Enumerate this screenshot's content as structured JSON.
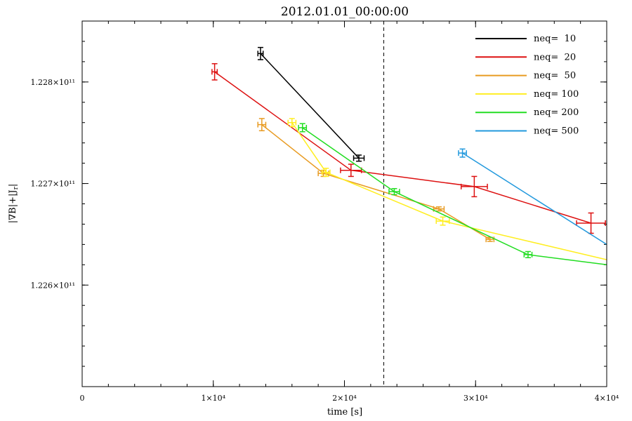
{
  "chart_data": {
    "type": "line",
    "title": "2012.01.01_00:00:00",
    "xlabel": "time [s]",
    "ylabel": "|∇B|+|J",
    "ylabel_sub": "r",
    "ylabel_suffix": "|",
    "xlim": [
      0,
      40000
    ],
    "ylim": [
      122500000000.0,
      122860000000.0
    ],
    "x_ticks": [
      {
        "value": 0,
        "label": "0"
      },
      {
        "value": 10000,
        "label": "1×10⁴"
      },
      {
        "value": 20000,
        "label": "2×10⁴"
      },
      {
        "value": 30000,
        "label": "3×10⁴"
      },
      {
        "value": 40000,
        "label": "4×10⁴"
      }
    ],
    "y_ticks": [
      {
        "value": 122600000000.0,
        "label": "1.226×10¹¹"
      },
      {
        "value": 122700000000.0,
        "label": "1.227×10¹¹"
      },
      {
        "value": 122800000000.0,
        "label": "1.228×10¹¹"
      }
    ],
    "vline": 23000,
    "legend_position": "top-right",
    "series": [
      {
        "name": "neq=  10",
        "color": "#000000",
        "points": [
          {
            "x": 13600,
            "y": 122828000000.0,
            "xerr": 200,
            "yerr": 6000000.0
          },
          {
            "x": 21100,
            "y": 122725000000.0,
            "xerr": 400,
            "yerr": 3000000.0
          }
        ]
      },
      {
        "name": "neq=  20",
        "color": "#dd1111",
        "points": [
          {
            "x": 10100,
            "y": 122810000000.0,
            "xerr": 200,
            "yerr": 8000000.0
          },
          {
            "x": 20500,
            "y": 122713000000.0,
            "xerr": 800,
            "yerr": 6000000.0
          },
          {
            "x": 29900,
            "y": 122697000000.0,
            "xerr": 1000,
            "yerr": 10000000.0
          },
          {
            "x": 38800,
            "y": 122661000000.0,
            "xerr": 1100,
            "yerr": 10000000.0
          }
        ]
      },
      {
        "name": "neq=  50",
        "color": "#e89b22",
        "points": [
          {
            "x": 13700,
            "y": 122758000000.0,
            "xerr": 300,
            "yerr": 6000000.0
          },
          {
            "x": 18400,
            "y": 122710000000.0,
            "xerr": 400,
            "yerr": 3000000.0
          },
          {
            "x": 27200,
            "y": 122675000000.0,
            "xerr": 400,
            "yerr": 2000000.0
          },
          {
            "x": 31100,
            "y": 122645000000.0,
            "xerr": 300,
            "yerr": 2000000.0
          }
        ]
      },
      {
        "name": "neq= 100",
        "color": "#ffee22",
        "points": [
          {
            "x": 16000,
            "y": 122760000000.0,
            "xerr": 300,
            "yerr": 4000000.0
          },
          {
            "x": 18600,
            "y": 122711000000.0,
            "xerr": 300,
            "yerr": 4000000.0
          },
          {
            "x": 27500,
            "y": 122663000000.0,
            "xerr": 500,
            "yerr": 4000000.0
          },
          {
            "x": 40000,
            "y": 122625000000.0,
            "xerr": 0,
            "yerr": 0
          }
        ]
      },
      {
        "name": "neq= 200",
        "color": "#22dd22",
        "points": [
          {
            "x": 16800,
            "y": 122755000000.0,
            "xerr": 300,
            "yerr": 4000000.0
          },
          {
            "x": 23800,
            "y": 122692000000.0,
            "xerr": 400,
            "yerr": 3000000.0
          },
          {
            "x": 34000,
            "y": 122630000000.0,
            "xerr": 300,
            "yerr": 3000000.0
          },
          {
            "x": 40000,
            "y": 122620000000.0,
            "xerr": 0,
            "yerr": 0
          }
        ]
      },
      {
        "name": "neq= 500",
        "color": "#2299dd",
        "points": [
          {
            "x": 29000,
            "y": 122730000000.0,
            "xerr": 300,
            "yerr": 4000000.0
          },
          {
            "x": 40000,
            "y": 122640000000.0,
            "xerr": 0,
            "yerr": 0
          }
        ]
      }
    ]
  }
}
